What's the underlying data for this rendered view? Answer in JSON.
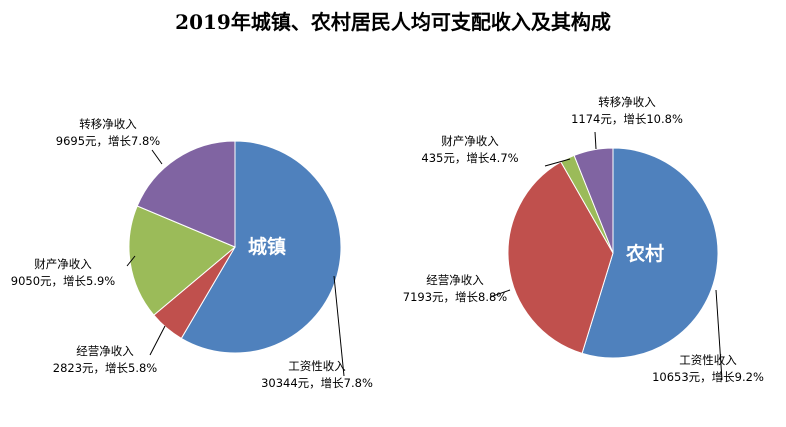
{
  "chart_data": [
    {
      "type": "pie",
      "title": "2019年城镇、农村居民人均可支配收入及其构成",
      "center_label": "城镇",
      "slices": [
        {
          "name": "工资性收入",
          "value": 30344,
          "growth": "增长7.8%",
          "value_text": "30344元，增长7.8%",
          "color": "#4F81BD"
        },
        {
          "name": "经营净收入",
          "value": 2823,
          "growth": "增长5.8%",
          "value_text": "2823元，增长5.8%",
          "color": "#C0504D"
        },
        {
          "name": "财产净收入",
          "value": 9050,
          "growth": "增长5.9%",
          "value_text": "9050元，增长5.9%",
          "color": "#9BBB59"
        },
        {
          "name": "转移净收入",
          "value": 9695,
          "growth": "增长7.8%",
          "value_text": "9695元，增长7.8%",
          "color": "#8064A2"
        }
      ]
    },
    {
      "type": "pie",
      "center_label": "农村",
      "slices": [
        {
          "name": "工资性收入",
          "value": 10653,
          "growth": "增长9.2%",
          "value_text": "10653元，增长9.2%",
          "color": "#4F81BD"
        },
        {
          "name": "经营净收入",
          "value": 7193,
          "growth": "增长8.8%",
          "value_text": "7193元，增长8.8%",
          "color": "#C0504D"
        },
        {
          "name": "财产净收入",
          "value": 435,
          "growth": "增长4.7%",
          "value_text": "435元，增长4.7%",
          "color": "#9BBB59"
        },
        {
          "name": "转移净收入",
          "value": 1174,
          "growth": "增长10.8%",
          "value_text": "1174元，增长10.8%",
          "color": "#8064A2"
        }
      ]
    }
  ]
}
